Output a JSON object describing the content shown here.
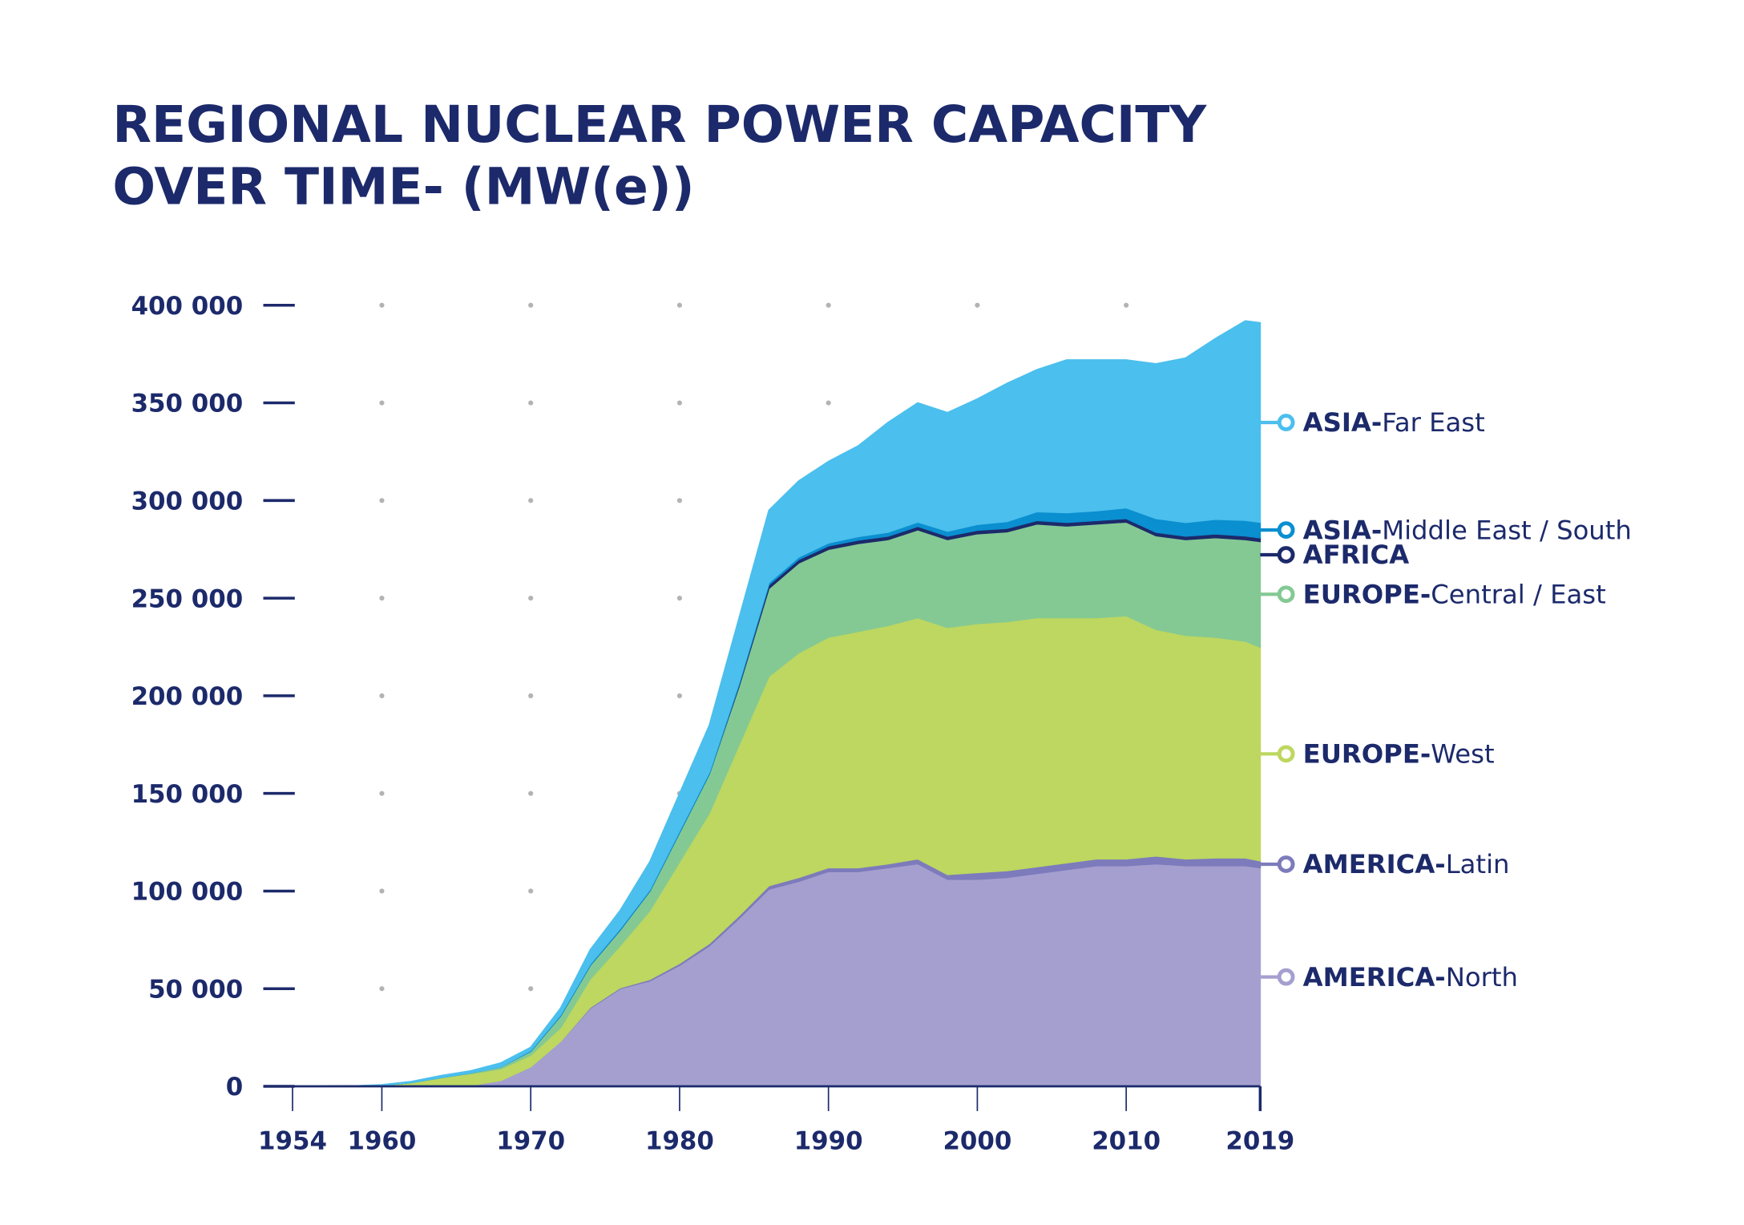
{
  "chart_data": {
    "type": "stacked-area",
    "title": [
      "REGIONAL NUCLEAR POWER  CAPACITY",
      "OVER TIME- (MW(e))"
    ],
    "x": [
      1954,
      1956,
      1958,
      1960,
      1962,
      1964,
      1966,
      1968,
      1970,
      1972,
      1974,
      1976,
      1978,
      1980,
      1982,
      1984,
      1986,
      1988,
      1990,
      1992,
      1994,
      1996,
      1998,
      2000,
      2002,
      2004,
      2006,
      2008,
      2010,
      2012,
      2014,
      2016,
      2018,
      2019
    ],
    "xlim": [
      1954,
      2019
    ],
    "xticks": [
      1954,
      1960,
      1970,
      1980,
      1990,
      2000,
      2010,
      2019
    ],
    "ylim": [
      0,
      400000
    ],
    "yticks": [
      0,
      {
        "value": 50000,
        "label": "50 000"
      },
      {
        "value": 100000,
        "label": "100 000"
      },
      {
        "value": 150000,
        "label": "150 000"
      },
      {
        "value": 200000,
        "label": "200 000"
      },
      {
        "value": 250000,
        "label": "250 000"
      },
      {
        "value": 300000,
        "label": "300 000"
      },
      {
        "value": 350000,
        "label": "350 000"
      },
      {
        "value": 400000,
        "label": "400 000"
      }
    ],
    "grid": "dotted",
    "text_color": "#1c2a6b",
    "series": [
      {
        "name": "AMERICA-North",
        "color": "#a59fd0",
        "values": [
          0,
          0,
          0,
          0,
          0,
          0,
          500,
          3000,
          10000,
          23000,
          40000,
          50000,
          54000,
          62000,
          72000,
          86000,
          101000,
          105000,
          110000,
          110000,
          112000,
          114000,
          106000,
          106000,
          107000,
          109000,
          111000,
          113000,
          113000,
          114000,
          113000,
          113000,
          113000,
          112000
        ]
      },
      {
        "name": "AMERICA-Latin",
        "color": "#7d7bbb",
        "values": [
          0,
          0,
          0,
          0,
          0,
          0,
          0,
          0,
          0,
          0,
          500,
          500,
          800,
          1000,
          1200,
          1500,
          1800,
          2000,
          2000,
          2000,
          2000,
          2500,
          2500,
          3500,
          3500,
          3500,
          3500,
          3500,
          3500,
          4000,
          3500,
          4000,
          4000,
          3500
        ]
      },
      {
        "name": "EUROPE-West",
        "color": "#bdd760",
        "values": [
          0,
          50,
          200,
          500,
          2000,
          4500,
          6000,
          6000,
          6000,
          7000,
          14500,
          21500,
          35200,
          52000,
          66800,
          87500,
          107200,
          115000,
          118000,
          121000,
          122000,
          123500,
          126500,
          127500,
          127500,
          127500,
          125500,
          123500,
          124500,
          116000,
          114500,
          113000,
          111000,
          109500
        ]
      },
      {
        "name": "EUROPE-Central / East",
        "color": "#84c993",
        "values": [
          5,
          0,
          0,
          0,
          0,
          0,
          500,
          1000,
          2000,
          6000,
          7000,
          8000,
          10000,
          15000,
          20000,
          30000,
          45000,
          46000,
          45000,
          45000,
          44000,
          45000,
          45000,
          46000,
          46000,
          48000,
          47000,
          48000,
          48000,
          48000,
          49000,
          51000,
          52000,
          54000
        ]
      },
      {
        "name": "AFRICA",
        "color": "#1c2a6b",
        "values": [
          0,
          0,
          0,
          0,
          0,
          0,
          0,
          0,
          0,
          0,
          0,
          0,
          0,
          0,
          0,
          900,
          1800,
          1800,
          1800,
          1800,
          1800,
          1800,
          1800,
          1800,
          1800,
          1800,
          1800,
          1800,
          1800,
          1800,
          1800,
          1900,
          1900,
          1900
        ]
      },
      {
        "name": "ASIA-Middle East / South",
        "color": "#0a8fd0",
        "values": [
          0,
          0,
          0,
          0,
          0,
          0,
          0,
          0,
          400,
          600,
          700,
          800,
          800,
          1000,
          1000,
          1200,
          1200,
          1300,
          1500,
          1800,
          2000,
          2200,
          2500,
          3000,
          3500,
          4500,
          5000,
          5000,
          5500,
          7000,
          7000,
          7500,
          8000,
          8000
        ]
      },
      {
        "name": "ASIA-Far East",
        "color": "#4bbfed",
        "values": [
          0,
          0,
          0,
          300,
          500,
          1000,
          1000,
          2000,
          1600,
          3400,
          7300,
          9200,
          14200,
          19000,
          24000,
          32900,
          37000,
          38900,
          41700,
          46400,
          56200,
          61000,
          60700,
          64200,
          70700,
          72700,
          78200,
          77200,
          75700,
          79200,
          84200,
          92600,
          102100,
          102100
        ]
      }
    ]
  }
}
